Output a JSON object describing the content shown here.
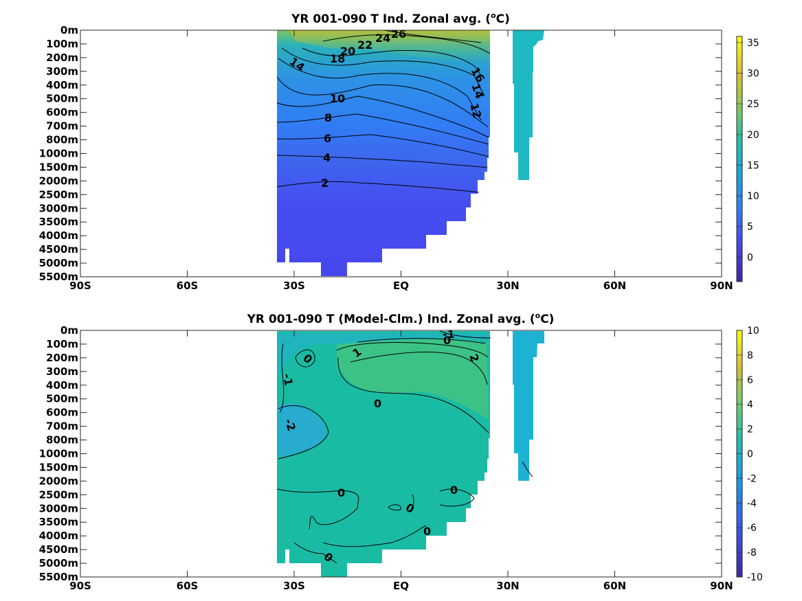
{
  "chart_data": [
    {
      "type": "heatmap",
      "title": "YR 001-090 T Ind. Zonal avg. (",
      "title_superscript": "o",
      "title_suffix": "C)",
      "y_ticks": [
        "0m",
        "100m",
        "200m",
        "300m",
        "400m",
        "500m",
        "600m",
        "700m",
        "800m",
        "1000m",
        "1500m",
        "2000m",
        "2500m",
        "3000m",
        "3500m",
        "4000m",
        "4500m",
        "5000m",
        "5500m"
      ],
      "x_ticks": [
        "90S",
        "60S",
        "30S",
        "EQ",
        "30N",
        "60N",
        "90N"
      ],
      "colorbar": {
        "min": -4,
        "max": 36,
        "ticks": [
          "35",
          "30",
          "25",
          "20",
          "15",
          "10",
          "5",
          "0"
        ],
        "tick_values": [
          35,
          30,
          25,
          20,
          15,
          10,
          5,
          0
        ]
      },
      "contour_labels": [
        "26",
        "24",
        "22",
        "20",
        "18",
        "14",
        "16",
        "14",
        "12",
        "10",
        "8",
        "6",
        "4",
        "2"
      ],
      "grid": false
    },
    {
      "type": "heatmap",
      "title": "YR 001-090 T (Model-Clm.) Ind. Zonal avg. (",
      "title_superscript": "o",
      "title_suffix": "C)",
      "y_ticks": [
        "0m",
        "100m",
        "200m",
        "300m",
        "400m",
        "500m",
        "600m",
        "700m",
        "800m",
        "1000m",
        "1500m",
        "2000m",
        "2500m",
        "3000m",
        "3500m",
        "4000m",
        "4500m",
        "5000m",
        "5500m"
      ],
      "x_ticks": [
        "90S",
        "60S",
        "30S",
        "EQ",
        "30N",
        "60N",
        "90N"
      ],
      "colorbar": {
        "min": -10,
        "max": 10,
        "ticks": [
          "10",
          "8",
          "6",
          "4",
          "2",
          "0",
          "-2",
          "-4",
          "-6",
          "-8",
          "-10"
        ],
        "tick_values": [
          10,
          8,
          6,
          4,
          2,
          0,
          -2,
          -4,
          -6,
          -8,
          -10
        ]
      },
      "contour_labels": [
        "-1",
        "0",
        "0",
        "1",
        "2",
        "-1",
        "-2",
        "0",
        "0",
        "0",
        "0",
        "0",
        "0"
      ],
      "grid": false
    }
  ]
}
